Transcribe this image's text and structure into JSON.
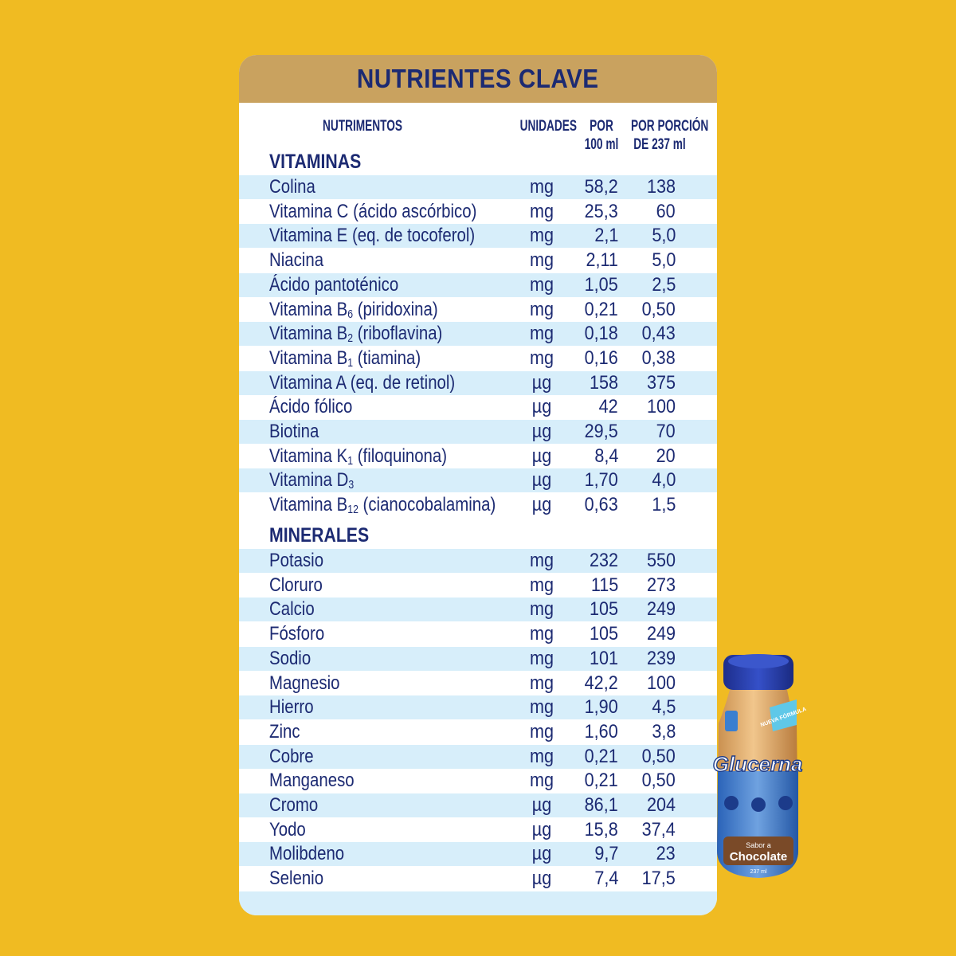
{
  "title": "NUTRIENTES CLAVE",
  "columns": {
    "nutrients": "NUTRIMENTOS",
    "units": "UNIDADES",
    "per100_line1": "POR",
    "per100_line2": "100 ml",
    "perserving_line1": "POR PORCIÓN",
    "perserving_line2": "DE 237 ml"
  },
  "vitamins_title": "VITAMINAS",
  "vitamins": [
    {
      "name": "Colina",
      "unit": "mg",
      "per100": "58,2",
      "per_serving": "138"
    },
    {
      "name": "Vitamina C (ácido ascórbico)",
      "unit": "mg",
      "per100": "25,3",
      "per_serving": "60"
    },
    {
      "name": "Vitamina E (eq. de tocoferol)",
      "unit": "mg",
      "per100": "2,1",
      "per_serving": "5,0"
    },
    {
      "name": "Niacina",
      "unit": "mg",
      "per100": "2,11",
      "per_serving": "5,0"
    },
    {
      "name": "Ácido pantoténico",
      "unit": "mg",
      "per100": "1,05",
      "per_serving": "2,5"
    },
    {
      "name": "Vitamina B",
      "sub": "6",
      "suffix": " (piridoxina)",
      "unit": "mg",
      "per100": "0,21",
      "per_serving": "0,50"
    },
    {
      "name": "Vitamina B",
      "sub": "2",
      "suffix": " (riboflavina)",
      "unit": "mg",
      "per100": "0,18",
      "per_serving": "0,43"
    },
    {
      "name": "Vitamina B",
      "sub": "1",
      "suffix": " (tiamina)",
      "unit": "mg",
      "per100": "0,16",
      "per_serving": "0,38"
    },
    {
      "name": "Vitamina A (eq. de retinol)",
      "unit": "µg",
      "per100": "158",
      "per_serving": "375"
    },
    {
      "name": "Ácido fólico",
      "unit": "µg",
      "per100": "42",
      "per_serving": "100"
    },
    {
      "name": "Biotina",
      "unit": "µg",
      "per100": "29,5",
      "per_serving": "70"
    },
    {
      "name": "Vitamina K",
      "sub": "1",
      "suffix": " (filoquinona)",
      "unit": "µg",
      "per100": "8,4",
      "per_serving": "20"
    },
    {
      "name": "Vitamina D",
      "sub": "3",
      "suffix": "",
      "unit": "µg",
      "per100": "1,70",
      "per_serving": "4,0"
    },
    {
      "name": "Vitamina B",
      "sub": "12",
      "suffix": " (cianocobalamina)",
      "unit": "µg",
      "per100": "0,63",
      "per_serving": "1,5"
    }
  ],
  "minerals_title": "MINERALES",
  "minerals": [
    {
      "name": "Potasio",
      "unit": "mg",
      "per100": "232",
      "per_serving": "550"
    },
    {
      "name": "Cloruro",
      "unit": "mg",
      "per100": "115",
      "per_serving": "273"
    },
    {
      "name": "Calcio",
      "unit": "mg",
      "per100": "105",
      "per_serving": "249"
    },
    {
      "name": "Fósforo",
      "unit": "mg",
      "per100": "105",
      "per_serving": "249"
    },
    {
      "name": "Sodio",
      "unit": "mg",
      "per100": "101",
      "per_serving": "239"
    },
    {
      "name": "Magnesio",
      "unit": "mg",
      "per100": "42,2",
      "per_serving": "100"
    },
    {
      "name": "Hierro",
      "unit": "mg",
      "per100": "1,90",
      "per_serving": "4,5"
    },
    {
      "name": "Zinc",
      "unit": "mg",
      "per100": "1,60",
      "per_serving": "3,8"
    },
    {
      "name": "Cobre",
      "unit": "mg",
      "per100": "0,21",
      "per_serving": "0,50"
    },
    {
      "name": "Manganeso",
      "unit": "mg",
      "per100": "0,21",
      "per_serving": "0,50"
    },
    {
      "name": "Cromo",
      "unit": "µg",
      "per100": "86,1",
      "per_serving": "204"
    },
    {
      "name": "Yodo",
      "unit": "µg",
      "per100": "15,8",
      "per_serving": "37,4"
    },
    {
      "name": "Molibdeno",
      "unit": "µg",
      "per100": "9,7",
      "per_serving": "23"
    },
    {
      "name": "Selenio",
      "unit": "µg",
      "per100": "7,4",
      "per_serving": "17,5"
    }
  ],
  "product": {
    "brand": "Glucerna",
    "flavor_prefix": "Sabor a",
    "flavor": "Chocolate",
    "badge": "NUEVA FÓRMULA",
    "volume": "237 ml"
  },
  "colors": {
    "background": "#f0bb22",
    "header": "#c9a25f",
    "text": "#1c2a72",
    "row_shade": "#d7eefa"
  }
}
